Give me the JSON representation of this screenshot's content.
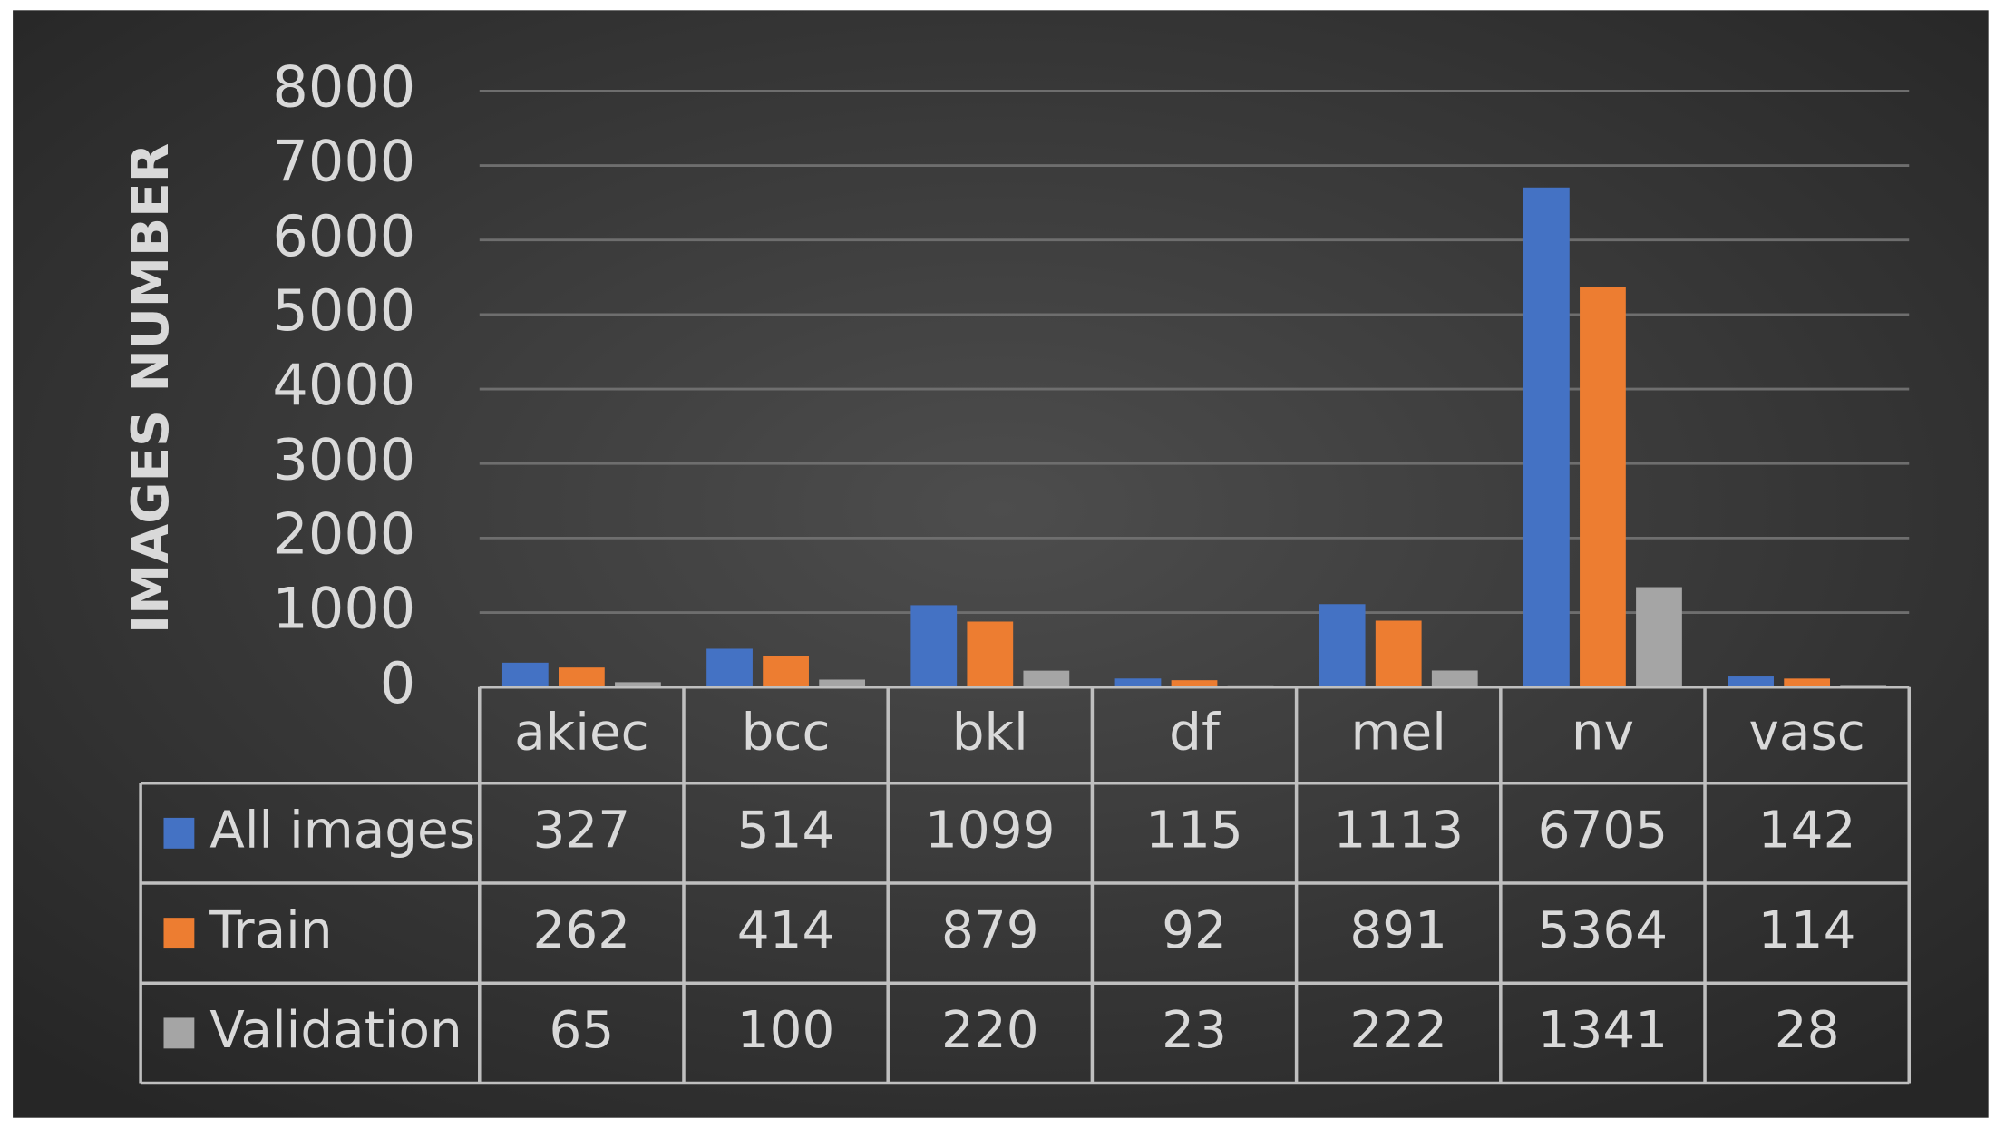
{
  "chart_data": {
    "type": "bar",
    "y_label": "IMAGES NUMBER",
    "categories": [
      "akiec",
      "bcc",
      "bkl",
      "df",
      "mel",
      "nv",
      "vasc"
    ],
    "series": [
      {
        "name": "All images",
        "color": "#4472c4",
        "values": [
          327,
          514,
          1099,
          115,
          1113,
          6705,
          142
        ]
      },
      {
        "name": "Train",
        "color": "#ed7d31",
        "values": [
          262,
          414,
          879,
          92,
          891,
          5364,
          114
        ]
      },
      {
        "name": "Validation",
        "color": "#a5a5a5",
        "values": [
          65,
          100,
          220,
          23,
          222,
          1341,
          28
        ]
      }
    ],
    "ylim": [
      0,
      8000
    ],
    "yticks": [
      0,
      1000,
      2000,
      3000,
      4000,
      5000,
      6000,
      7000,
      8000
    ],
    "grid": true,
    "data_table": true
  }
}
